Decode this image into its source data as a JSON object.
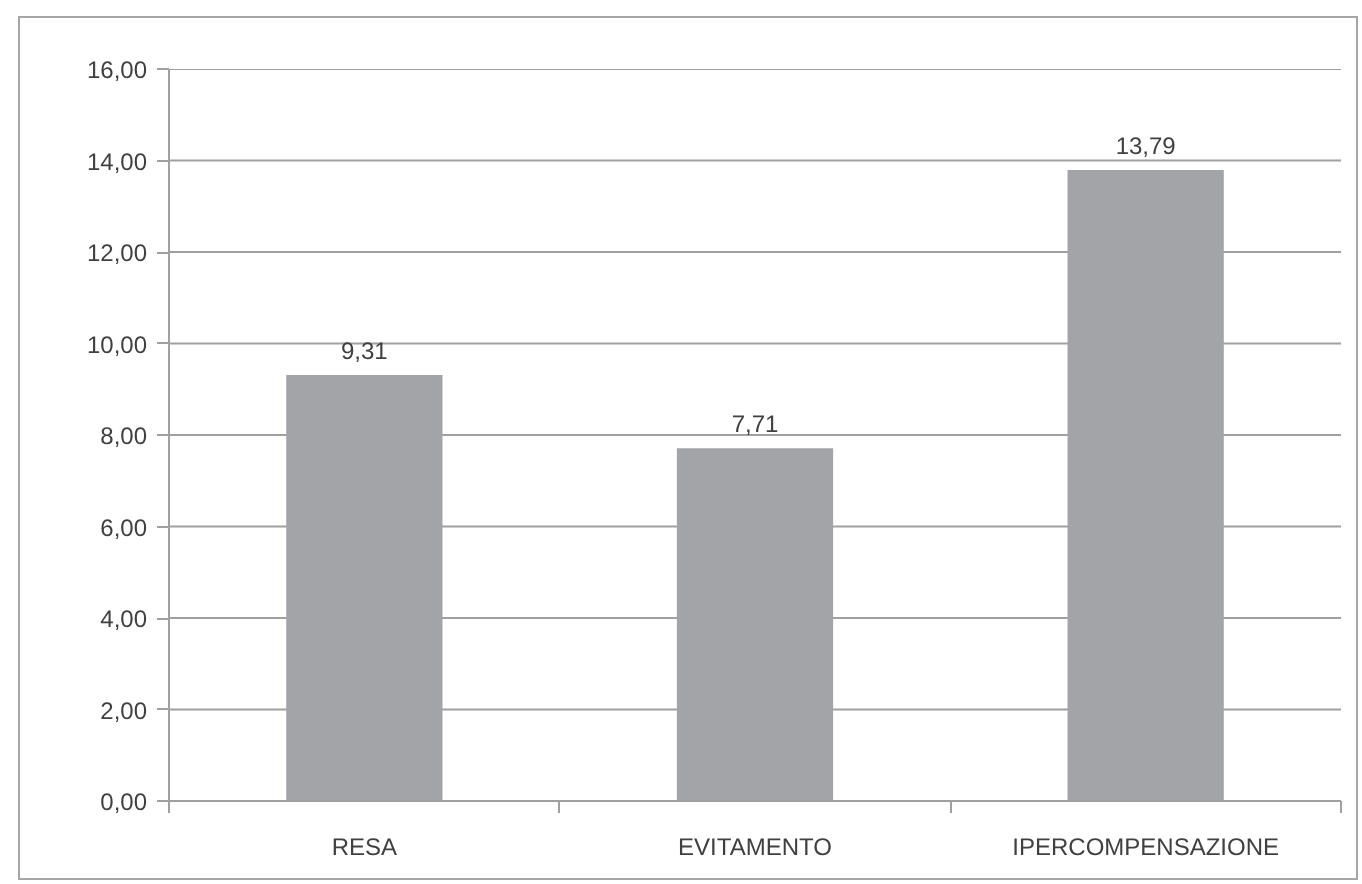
{
  "chart_data": {
    "type": "bar",
    "categories": [
      "RESA",
      "EVITAMENTO",
      "IPERCOMPENSAZIONE"
    ],
    "values": [
      9.31,
      7.71,
      13.79
    ],
    "color": "#a3a4a8",
    "value_labels": [
      "9,31",
      "7,71",
      "13,79"
    ],
    "ylim": [
      0,
      16
    ],
    "yticks": [
      {
        "value": 0,
        "label": "0,00"
      },
      {
        "value": 2,
        "label": "2,00"
      },
      {
        "value": 4,
        "label": "4,00"
      },
      {
        "value": 6,
        "label": "6,00"
      },
      {
        "value": 8,
        "label": "8,00"
      },
      {
        "value": 10,
        "label": "10,00"
      },
      {
        "value": 12,
        "label": "12,00"
      },
      {
        "value": 14,
        "label": "14,00"
      },
      {
        "value": 16,
        "label": "16,00"
      }
    ],
    "grid": "y"
  }
}
